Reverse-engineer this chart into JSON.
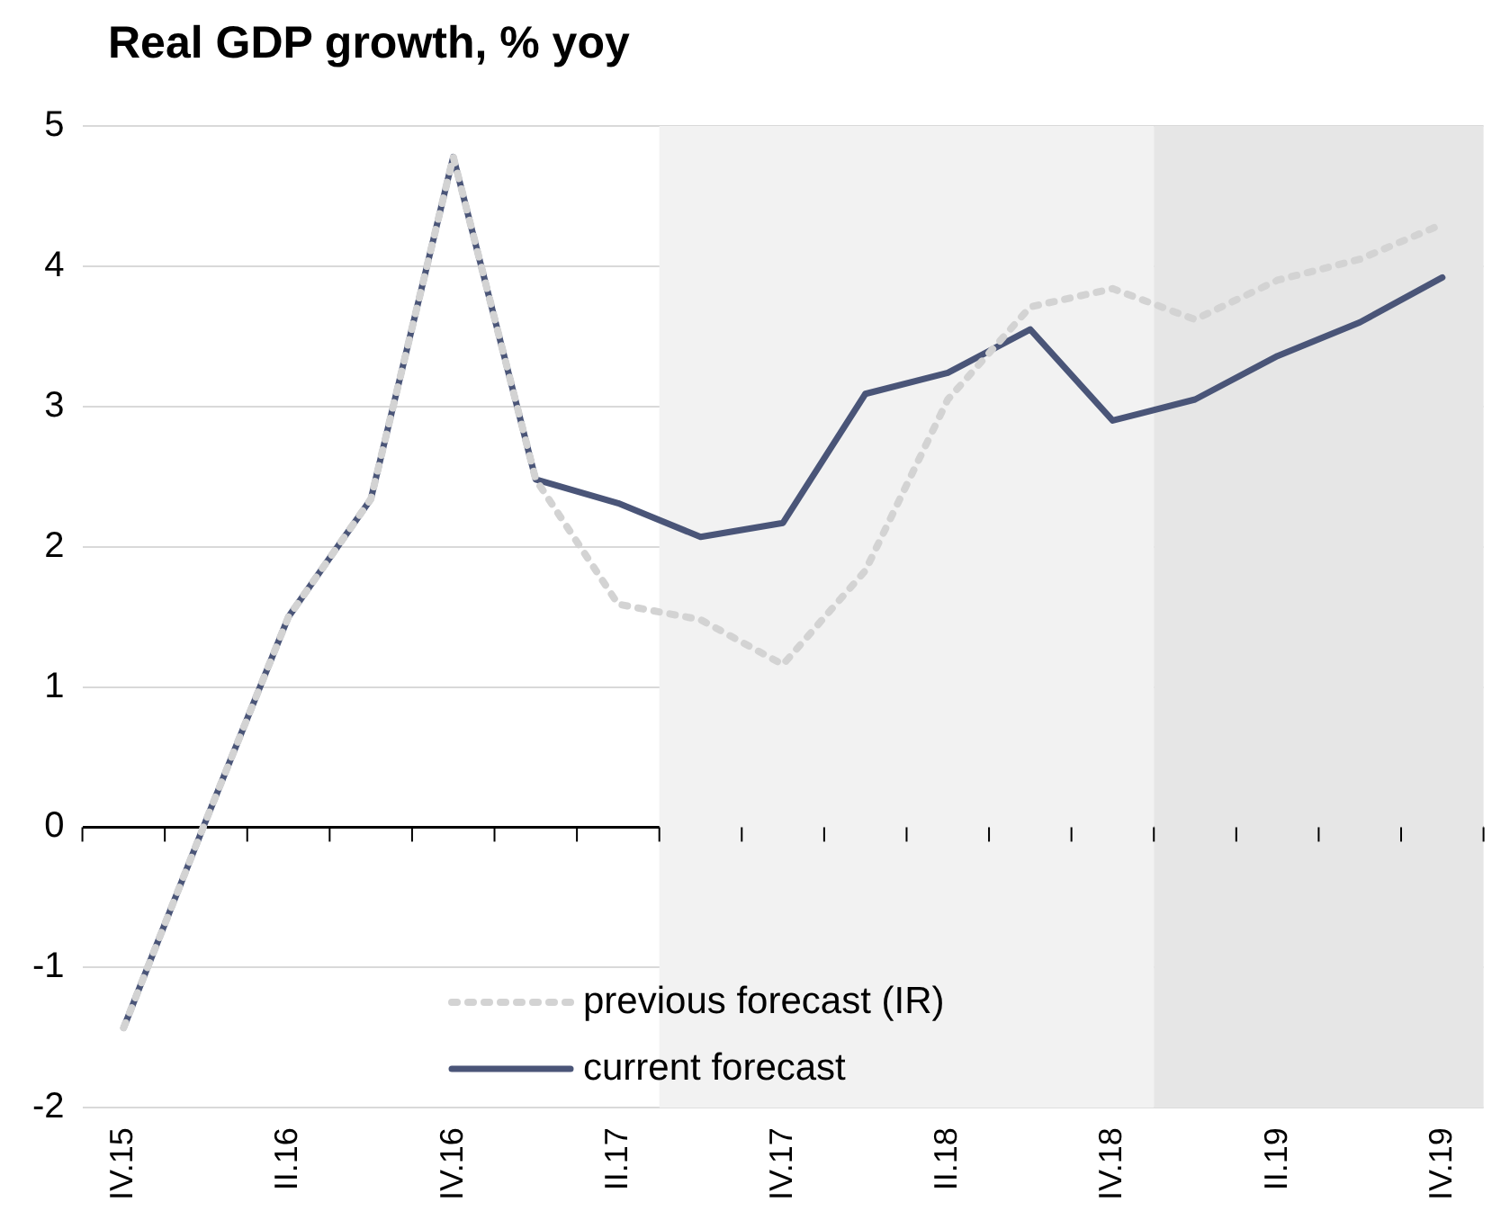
{
  "chart_data": {
    "type": "line",
    "title": "Real GDP growth, % yoy",
    "categories": [
      "IV.15",
      null,
      "II.16",
      null,
      "IV.16",
      null,
      "II.17",
      null,
      "IV.17",
      null,
      "II.18",
      null,
      "IV.18",
      null,
      "II.19",
      null,
      "IV.19"
    ],
    "series": [
      {
        "name": "previous forecast (IR)",
        "color": "#d3d3d3",
        "line_style": "dotted",
        "values": [
          -1.43,
          0.05,
          1.5,
          2.34,
          4.78,
          2.48,
          1.59,
          1.48,
          1.16,
          1.83,
          3.05,
          3.71,
          3.84,
          3.62,
          3.9,
          4.05,
          4.3
        ]
      },
      {
        "name": "current forecast",
        "color": "#4a5578",
        "line_style": "solid",
        "values": [
          -1.43,
          0.05,
          1.5,
          2.34,
          4.78,
          2.48,
          2.31,
          2.07,
          2.17,
          3.09,
          3.24,
          3.55,
          2.9,
          3.05,
          3.36,
          3.6,
          3.92
        ]
      }
    ],
    "ylim": [
      -2,
      5
    ],
    "yticks": [
      -2,
      -1,
      0,
      1,
      2,
      3,
      4,
      5
    ],
    "grid": "y",
    "legend": "bottom",
    "marker": "none",
    "bands": [
      {
        "axis": "x",
        "from": "II.17",
        "to": "IV.18",
        "color": "#f2f2f2"
      },
      {
        "axis": "x",
        "from": "IV.18",
        "to": "IV.19",
        "color": "#e6e6e6"
      }
    ]
  }
}
